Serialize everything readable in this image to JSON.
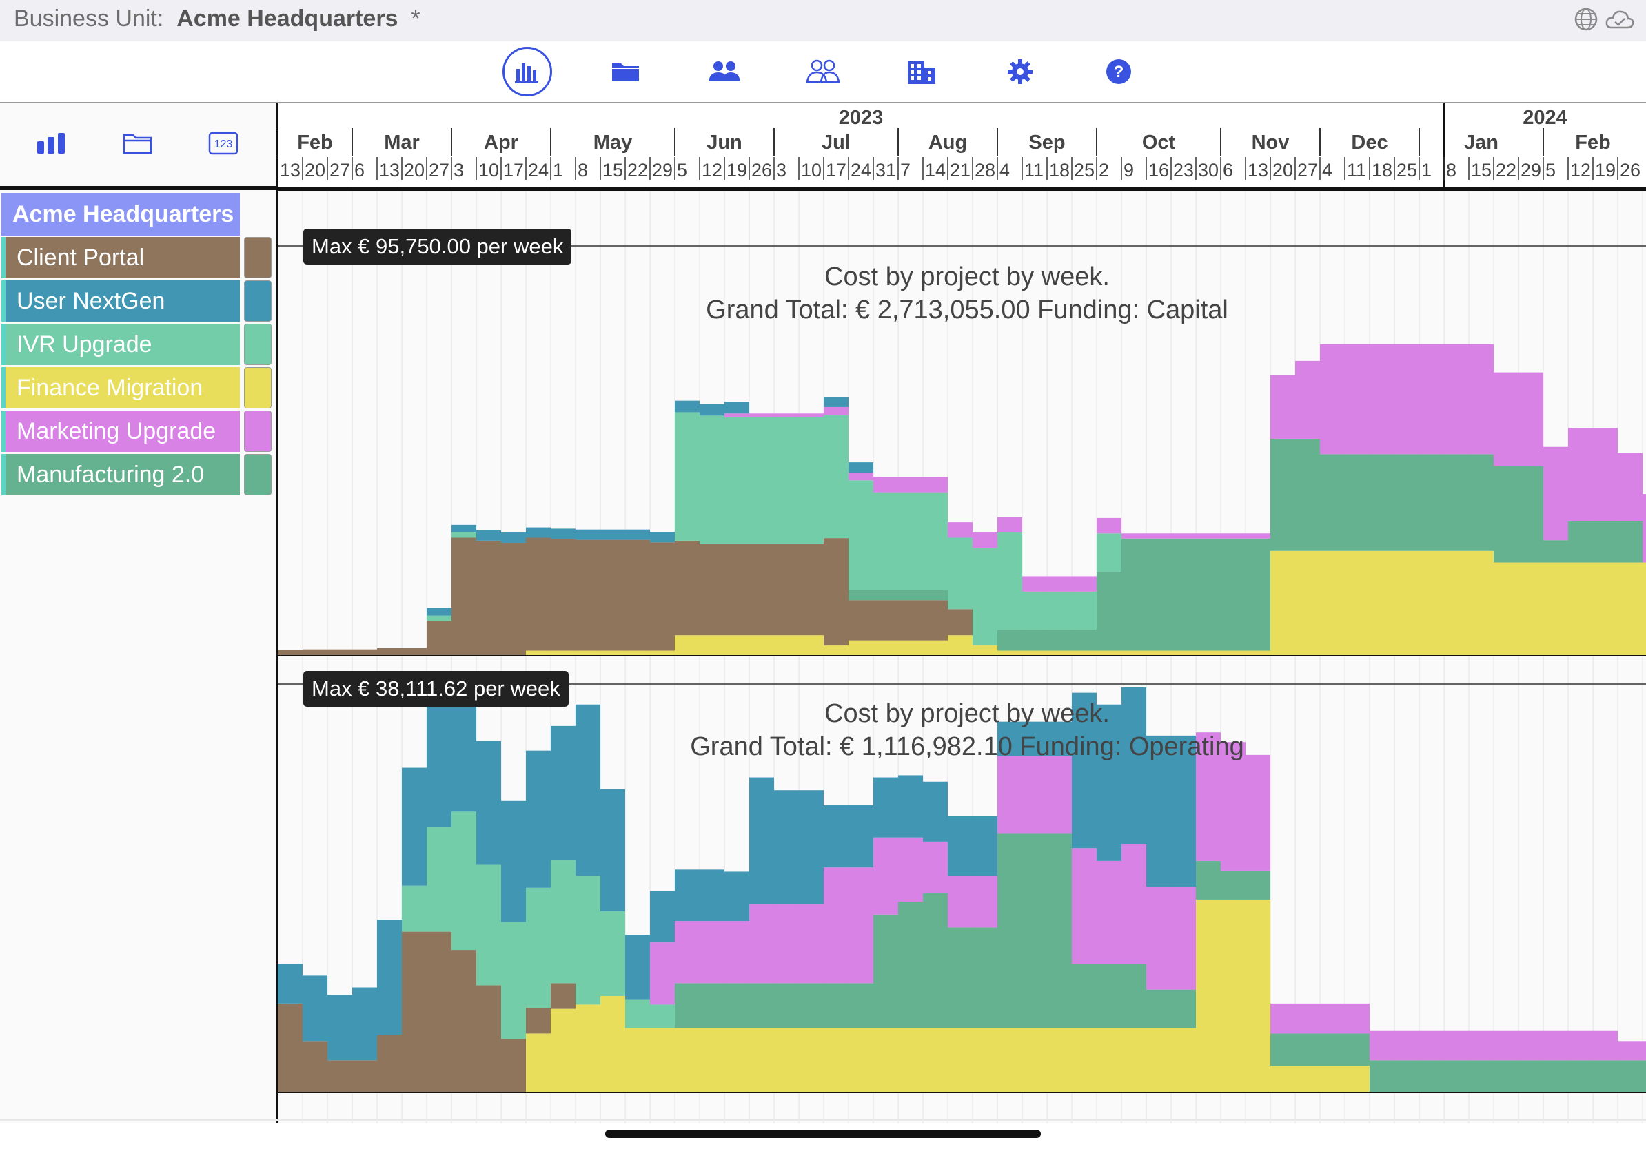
{
  "header": {
    "label": "Business Unit:",
    "unit_name": "Acme Headquarters",
    "modified_marker": "*",
    "system_icons": [
      "globe-icon",
      "cloud-icon"
    ]
  },
  "toolbar": {
    "items": [
      {
        "name": "chart-icon",
        "active": true
      },
      {
        "name": "folder-icon",
        "active": false
      },
      {
        "name": "people-icon",
        "active": false
      },
      {
        "name": "people-outline-icon",
        "active": false
      },
      {
        "name": "building-icon",
        "active": false
      },
      {
        "name": "gear-icon",
        "active": false
      },
      {
        "name": "help-icon",
        "active": false
      }
    ],
    "accent": "#3a52e0"
  },
  "left_tools": [
    {
      "name": "bar-chart-icon"
    },
    {
      "name": "folder-outline-icon"
    },
    {
      "name": "number-icon",
      "text": "123"
    }
  ],
  "business_unit_row": "Acme Headquarters",
  "projects": [
    {
      "name": "Client Portal",
      "color": "#8e755c"
    },
    {
      "name": "User  NextGen",
      "color": "#4196b4"
    },
    {
      "name": "IVR Upgrade",
      "color": "#73cda9"
    },
    {
      "name": "Finance Migration",
      "color": "#e9de5b"
    },
    {
      "name": "Marketing Upgrade",
      "color": "#d882e6"
    },
    {
      "name": "Manufacturing 2.0",
      "color": "#64b290"
    }
  ],
  "timeline": {
    "years": [
      {
        "label": "2023",
        "week_start": 0,
        "week_end": 47
      },
      {
        "label": "2024",
        "week_start": 47,
        "week_end": 56
      }
    ],
    "months": [
      {
        "label": "Feb",
        "start": 0,
        "weeks": [
          "13",
          "20",
          "27"
        ]
      },
      {
        "label": "Mar",
        "start": 3,
        "weeks": [
          "6",
          "13",
          "20",
          "27"
        ]
      },
      {
        "label": "Apr",
        "start": 7,
        "weeks": [
          "3",
          "10",
          "17",
          "24"
        ]
      },
      {
        "label": "May",
        "start": 11,
        "weeks": [
          "1",
          "8",
          "15",
          "22",
          "29"
        ]
      },
      {
        "label": "Jun",
        "start": 16,
        "weeks": [
          "5",
          "12",
          "19",
          "26"
        ]
      },
      {
        "label": "Jul",
        "start": 20,
        "weeks": [
          "3",
          "10",
          "17",
          "24",
          "31"
        ]
      },
      {
        "label": "Aug",
        "start": 25,
        "weeks": [
          "7",
          "14",
          "21",
          "28"
        ]
      },
      {
        "label": "Sep",
        "start": 29,
        "weeks": [
          "4",
          "11",
          "18",
          "25"
        ]
      },
      {
        "label": "Oct",
        "start": 33,
        "weeks": [
          "2",
          "9",
          "16",
          "23",
          "30"
        ]
      },
      {
        "label": "Nov",
        "start": 38,
        "weeks": [
          "6",
          "13",
          "20",
          "27"
        ]
      },
      {
        "label": "Dec",
        "start": 42,
        "weeks": [
          "4",
          "11",
          "18",
          "25"
        ]
      },
      {
        "label": "Jan",
        "start": 46,
        "weeks": [
          "1",
          "8",
          "15",
          "22",
          "29"
        ]
      },
      {
        "label": "Feb",
        "start": 51,
        "weeks": [
          "5",
          "12",
          "19",
          "26"
        ]
      }
    ]
  },
  "chart_data": [
    {
      "type": "bar",
      "stacked": true,
      "title": "Cost by project by week.",
      "subtitle": "Grand Total: € 2,713,055.00  Funding: Capital",
      "max_label": "Max € 95,750.00 per week",
      "ylim": [
        0,
        95750
      ],
      "series_order": [
        "Finance Migration",
        "Client Portal",
        "Manufacturing 2.0",
        "IVR Upgrade",
        "Marketing Upgrade",
        "User  NextGen"
      ],
      "series": [
        {
          "name": "Finance Migration",
          "values": [
            0,
            0,
            0,
            0,
            0,
            0,
            0,
            0,
            0,
            0,
            1200,
            1200,
            1200,
            1200,
            1200,
            1200,
            4800,
            4800,
            4800,
            4800,
            4800,
            4800,
            2400,
            3600,
            3600,
            3600,
            3600,
            4800,
            2400,
            1200,
            1200,
            1200,
            1200,
            1200,
            1200,
            1200,
            1200,
            1200,
            1200,
            1200,
            24500,
            24500,
            24500,
            24500,
            24500,
            24500,
            24500,
            24500,
            24500,
            21800,
            21800,
            21800,
            21800,
            21800,
            21800,
            21800,
            21800
          ]
        },
        {
          "name": "Client Portal",
          "values": [
            1300,
            1500,
            1500,
            1500,
            1800,
            1800,
            8200,
            27600,
            26900,
            26400,
            26400,
            26100,
            25900,
            25900,
            25900,
            25300,
            22100,
            21300,
            21300,
            21300,
            21300,
            21300,
            25100,
            9400,
            9400,
            9400,
            9400,
            6100,
            0,
            0,
            0,
            0,
            0,
            0,
            0,
            0,
            0,
            0,
            0,
            0,
            0,
            0,
            0,
            0,
            0,
            0,
            0,
            0,
            0,
            0,
            0,
            0,
            0,
            0,
            0,
            0,
            0
          ]
        },
        {
          "name": "Manufacturing 2.0",
          "values": [
            0,
            0,
            0,
            0,
            0,
            0,
            0,
            0,
            0,
            0,
            0,
            0,
            0,
            0,
            0,
            0,
            0,
            0,
            0,
            0,
            0,
            0,
            0,
            2400,
            2400,
            2400,
            2400,
            0,
            0,
            4800,
            4800,
            4800,
            4800,
            18400,
            26200,
            26200,
            26200,
            26200,
            26200,
            26200,
            26200,
            26200,
            22600,
            22600,
            22600,
            22600,
            22600,
            22600,
            22600,
            22600,
            22600,
            5200,
            9600,
            9600,
            9600,
            0,
            0
          ]
        },
        {
          "name": "IVR Upgrade",
          "values": [
            0,
            0,
            0,
            0,
            0,
            0,
            1200,
            1200,
            0,
            0,
            0,
            0,
            0,
            0,
            0,
            0,
            30000,
            30000,
            29600,
            29600,
            29600,
            29600,
            28800,
            25600,
            22800,
            22800,
            22800,
            16700,
            22800,
            22800,
            9000,
            9000,
            9000,
            9000,
            0,
            0,
            0,
            0,
            0,
            0,
            0,
            0,
            0,
            0,
            0,
            0,
            0,
            0,
            0,
            0,
            0,
            0,
            0,
            0,
            0,
            0,
            0
          ]
        },
        {
          "name": "Marketing Upgrade",
          "values": [
            0,
            0,
            0,
            0,
            0,
            0,
            0,
            0,
            0,
            0,
            0,
            0,
            0,
            0,
            0,
            0,
            0,
            0,
            900,
            900,
            900,
            900,
            1800,
            1800,
            3600,
            3600,
            3600,
            3600,
            3600,
            3600,
            3600,
            3600,
            3600,
            3600,
            1200,
            1200,
            1200,
            1200,
            1200,
            1200,
            14900,
            18200,
            25700,
            25700,
            25700,
            25700,
            25700,
            25700,
            25700,
            21800,
            21800,
            21800,
            21800,
            21800,
            16000,
            16000,
            16000
          ]
        },
        {
          "name": "User  NextGen",
          "values": [
            0,
            0,
            0,
            0,
            0,
            0,
            1800,
            1800,
            2400,
            2400,
            2400,
            2400,
            2400,
            2400,
            2400,
            2400,
            2700,
            2700,
            2700,
            0,
            0,
            0,
            2400,
            2400,
            0,
            0,
            0,
            0,
            0,
            0,
            0,
            0,
            0,
            0,
            0,
            0,
            0,
            0,
            0,
            0,
            0,
            0,
            0,
            0,
            0,
            0,
            0,
            0,
            0,
            0,
            0,
            0,
            0,
            0,
            0,
            0,
            0
          ]
        }
      ]
    },
    {
      "type": "bar",
      "stacked": true,
      "title": "Cost by project by week.",
      "subtitle": "Grand Total: € 1,116,982.10  Funding: Operating",
      "max_label": "Max € 38,111.62 per week",
      "ylim": [
        0,
        38111.62
      ],
      "series_order": [
        "Finance Migration",
        "Client Portal",
        "Manufacturing 2.0",
        "IVR Upgrade",
        "Marketing Upgrade",
        "User  NextGen"
      ],
      "series": [
        {
          "name": "Finance Migration",
          "values": [
            0,
            0,
            0,
            0,
            0,
            0,
            0,
            0,
            0,
            0,
            5500,
            7800,
            8200,
            9000,
            6000,
            6000,
            6000,
            6000,
            6000,
            6000,
            6000,
            6000,
            6000,
            6000,
            6000,
            6000,
            6000,
            6000,
            6000,
            6000,
            6000,
            6000,
            6000,
            6000,
            6000,
            6000,
            6000,
            18000,
            18000,
            18000,
            2500,
            2500,
            2500,
            2500,
            0,
            0,
            0,
            0,
            0,
            0,
            0,
            0,
            0,
            0,
            0,
            0,
            0
          ]
        },
        {
          "name": "Client Portal",
          "values": [
            8300,
            4800,
            3000,
            3000,
            5400,
            15000,
            15000,
            13300,
            10000,
            5000,
            2400,
            2400,
            0,
            0,
            0,
            0,
            0,
            0,
            0,
            0,
            0,
            0,
            0,
            0,
            0,
            0,
            0,
            0,
            0,
            0,
            0,
            0,
            0,
            0,
            0,
            0,
            0,
            0,
            0,
            0,
            0,
            0,
            0,
            0,
            0,
            0,
            0,
            0,
            0,
            0,
            0,
            0,
            0,
            0,
            0,
            0,
            0
          ]
        },
        {
          "name": "Manufacturing 2.0",
          "values": [
            0,
            0,
            0,
            0,
            0,
            0,
            0,
            0,
            0,
            0,
            0,
            0,
            0,
            0,
            0,
            0,
            4200,
            4200,
            4200,
            4200,
            4200,
            4200,
            4200,
            4200,
            10600,
            11800,
            12600,
            9400,
            9400,
            18200,
            18200,
            18200,
            6000,
            6000,
            6000,
            3600,
            3600,
            3600,
            2700,
            2700,
            3000,
            3000,
            3000,
            3000,
            3000,
            3000,
            3000,
            3000,
            3000,
            3000,
            3000,
            3000,
            3000,
            3000,
            3000,
            3000,
            3000
          ]
        },
        {
          "name": "IVR Upgrade",
          "values": [
            0,
            0,
            0,
            0,
            0,
            4300,
            9800,
            12900,
            11300,
            10900,
            11200,
            11500,
            12000,
            7900,
            2700,
            2200,
            0,
            0,
            0,
            0,
            0,
            0,
            0,
            0,
            0,
            0,
            0,
            0,
            0,
            0,
            0,
            0,
            0,
            0,
            0,
            0,
            0,
            0,
            0,
            0,
            0,
            0,
            0,
            0,
            0,
            0,
            0,
            0,
            0,
            0,
            0,
            0,
            0,
            0,
            0,
            0,
            0
          ]
        },
        {
          "name": "Marketing Upgrade",
          "values": [
            0,
            0,
            0,
            0,
            0,
            0,
            0,
            0,
            0,
            0,
            0,
            0,
            0,
            0,
            0,
            5800,
            5800,
            5800,
            5800,
            7400,
            7400,
            7400,
            10800,
            10800,
            7200,
            6000,
            4800,
            4800,
            4800,
            7200,
            7200,
            7200,
            10800,
            9600,
            11200,
            9600,
            9600,
            12000,
            12000,
            10800,
            2800,
            2800,
            2800,
            2800,
            2800,
            2800,
            2800,
            2800,
            2800,
            2800,
            2800,
            2800,
            2800,
            2800,
            1800,
            1800,
            1800
          ]
        },
        {
          "name": "User  NextGen",
          "values": [
            3700,
            6100,
            6100,
            6800,
            10700,
            11000,
            11300,
            11200,
            11500,
            11300,
            12800,
            12500,
            16000,
            11400,
            6000,
            4800,
            4800,
            4800,
            4600,
            11800,
            10600,
            10600,
            5800,
            5800,
            5600,
            5800,
            5600,
            5600,
            5600,
            3200,
            3200,
            3200,
            14500,
            14600,
            14600,
            14100,
            14100,
            0,
            0,
            0,
            0,
            0,
            0,
            0,
            0,
            0,
            0,
            0,
            0,
            0,
            0,
            0,
            0,
            0,
            0,
            0,
            0
          ]
        }
      ]
    }
  ]
}
